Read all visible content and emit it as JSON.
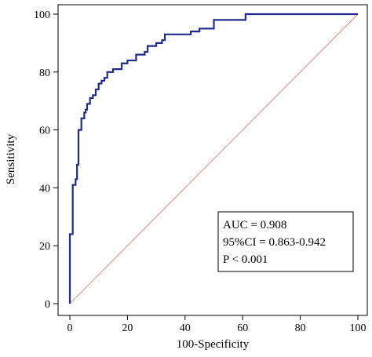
{
  "chart_data": {
    "type": "line",
    "title": "",
    "xlabel": "100-Specificity",
    "ylabel": "Sensitivity",
    "xlim": [
      0,
      100
    ],
    "ylim": [
      0,
      100
    ],
    "xticks": [
      0,
      20,
      40,
      60,
      80,
      100
    ],
    "yticks": [
      0,
      20,
      40,
      60,
      80,
      100
    ],
    "grid": false,
    "series": [
      {
        "role": "roc-curve",
        "color": "#1f2a8c",
        "x": [
          0,
          0,
          1,
          1,
          2,
          2,
          2.5,
          2.5,
          3,
          3,
          4,
          4,
          5,
          5,
          5.5,
          5.5,
          6,
          6,
          7,
          7,
          8,
          8,
          9,
          9,
          10,
          10,
          11,
          11,
          12,
          12,
          13,
          13,
          15,
          15,
          18,
          18,
          20,
          20,
          23,
          23,
          26,
          26,
          27,
          27,
          30,
          30,
          32,
          32,
          33,
          33,
          37,
          37,
          42,
          42,
          45,
          45,
          50,
          50,
          61,
          61,
          100
        ],
        "y": [
          0,
          24,
          24,
          41,
          41,
          43,
          43,
          48,
          48,
          60,
          60,
          64,
          64,
          66,
          66,
          67,
          67,
          69,
          69,
          71,
          71,
          72,
          72,
          74,
          74,
          76,
          76,
          77,
          77,
          78,
          78,
          80,
          80,
          81,
          81,
          83,
          83,
          84,
          84,
          86,
          86,
          87,
          87,
          89,
          89,
          90,
          90,
          91,
          91,
          93,
          93,
          93,
          93,
          94,
          94,
          95,
          95,
          98,
          98,
          100,
          100
        ]
      },
      {
        "role": "reference-line",
        "color": "#d98c7a",
        "x": [
          0,
          100
        ],
        "y": [
          0,
          100
        ]
      }
    ],
    "annotation": {
      "lines": [
        "AUC = 0.908",
        "95%CI = 0.863-0.942",
        "P < 0.001"
      ]
    }
  }
}
